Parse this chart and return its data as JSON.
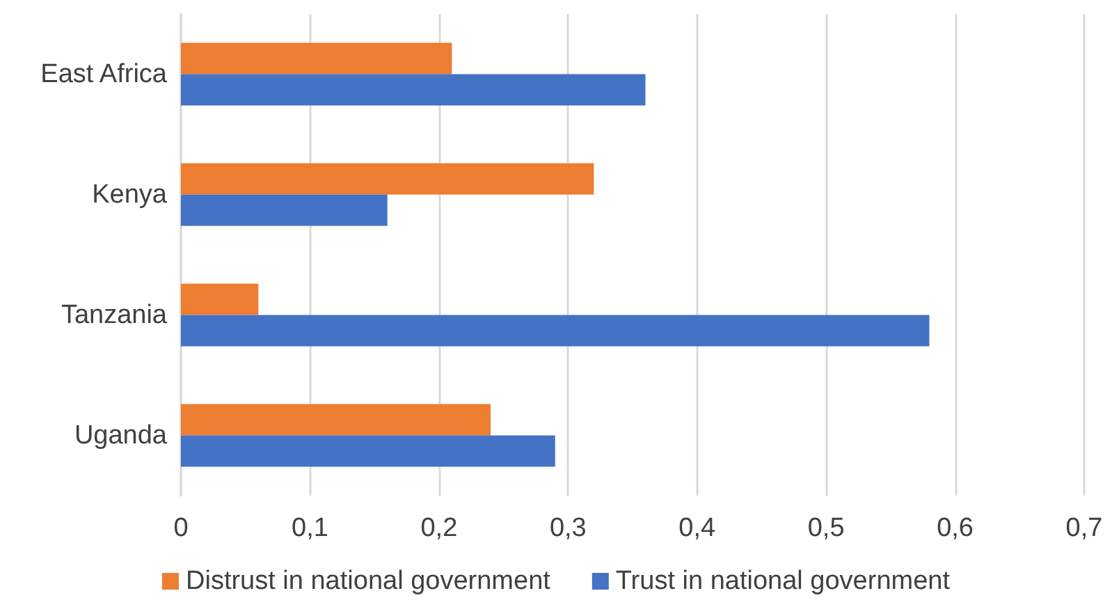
{
  "chart_data": {
    "type": "bar",
    "orientation": "horizontal",
    "categories": [
      "East Africa",
      "Kenya",
      "Tanzania",
      "Uganda"
    ],
    "series": [
      {
        "name": "Distrust in national government",
        "color": "#ed7d31",
        "values": [
          0.21,
          0.32,
          0.06,
          0.24
        ]
      },
      {
        "name": "Trust in national government",
        "color": "#4472c4",
        "values": [
          0.36,
          0.16,
          0.58,
          0.29
        ]
      }
    ],
    "xlim": [
      0,
      0.7
    ],
    "xticks": [
      0,
      {
        "value": 0.1,
        "label": "0,1"
      },
      {
        "value": 0.2,
        "label": "0,2"
      },
      {
        "value": 0.3,
        "label": "0,3"
      },
      {
        "value": 0.4,
        "label": "0,4"
      },
      {
        "value": 0.5,
        "label": "0,5"
      },
      {
        "value": 0.6,
        "label": "0,6"
      },
      {
        "value": 0.7,
        "label": "0,7"
      }
    ],
    "grid": "x",
    "legend": "bottom"
  }
}
